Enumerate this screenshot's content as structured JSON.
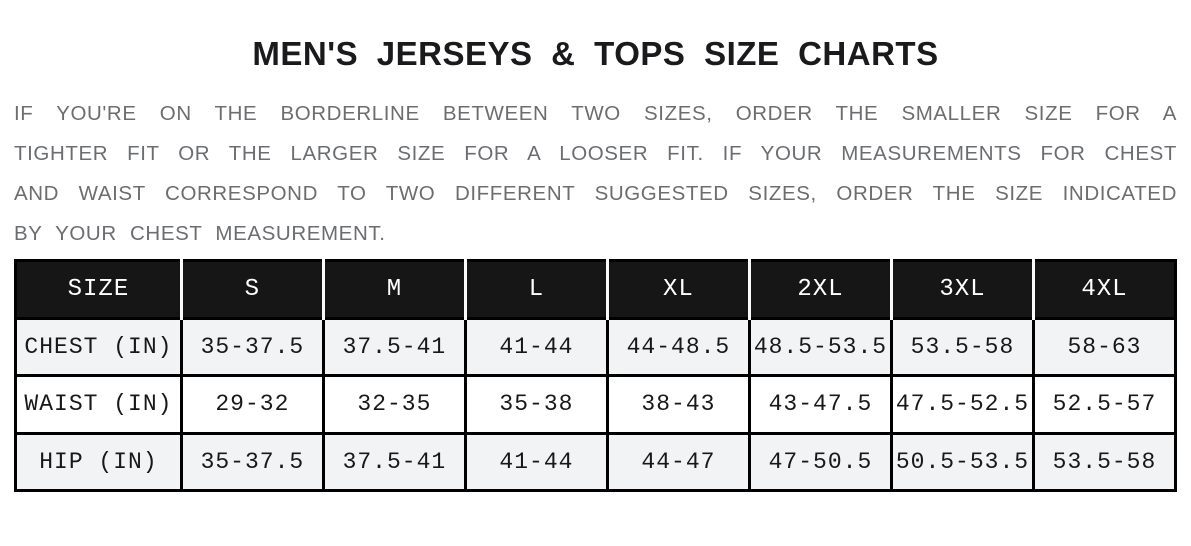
{
  "header": {
    "title": "MEN'S JERSEYS & TOPS SIZE CHARTS"
  },
  "intro": {
    "lines": [
      "IF YOU'RE ON THE BORDERLINE BETWEEN TWO SIZES, ORDER THE SMALLER SIZE FOR A",
      "TIGHTER FIT OR THE LARGER SIZE FOR A LOOSER FIT. IF YOUR MEASUREMENTS FOR CHEST",
      "AND WAIST CORRESPOND TO TWO DIFFERENT SUGGESTED SIZES, ORDER THE SIZE INDICATED",
      "BY YOUR CHEST MEASUREMENT."
    ]
  },
  "size_chart": {
    "columns": [
      "SIZE",
      "S",
      "M",
      "L",
      "XL",
      "2XL",
      "3XL",
      "4XL"
    ],
    "rows": [
      {
        "label": "CHEST (IN)",
        "values": [
          "35-37.5",
          "37.5-41",
          "41-44",
          "44-48.5",
          "48.5-53.5",
          "53.5-58",
          "58-63"
        ]
      },
      {
        "label": "WAIST (IN)",
        "values": [
          "29-32",
          "32-35",
          "35-38",
          "38-43",
          "43-47.5",
          "47.5-52.5",
          "52.5-57"
        ]
      },
      {
        "label": "HIP (IN)",
        "values": [
          "35-37.5",
          "37.5-41",
          "41-44",
          "44-47",
          "47-50.5",
          "50.5-53.5",
          "53.5-58"
        ]
      }
    ]
  },
  "colors": {
    "header_row_bg": "#161616",
    "header_row_text": "#ffffff",
    "shaded_row_bg": "#f2f3f5",
    "white_row_bg": "#ffffff",
    "table_border": "#000000",
    "title_text": "#1a1a1c",
    "intro_text": "#6b6d70"
  }
}
